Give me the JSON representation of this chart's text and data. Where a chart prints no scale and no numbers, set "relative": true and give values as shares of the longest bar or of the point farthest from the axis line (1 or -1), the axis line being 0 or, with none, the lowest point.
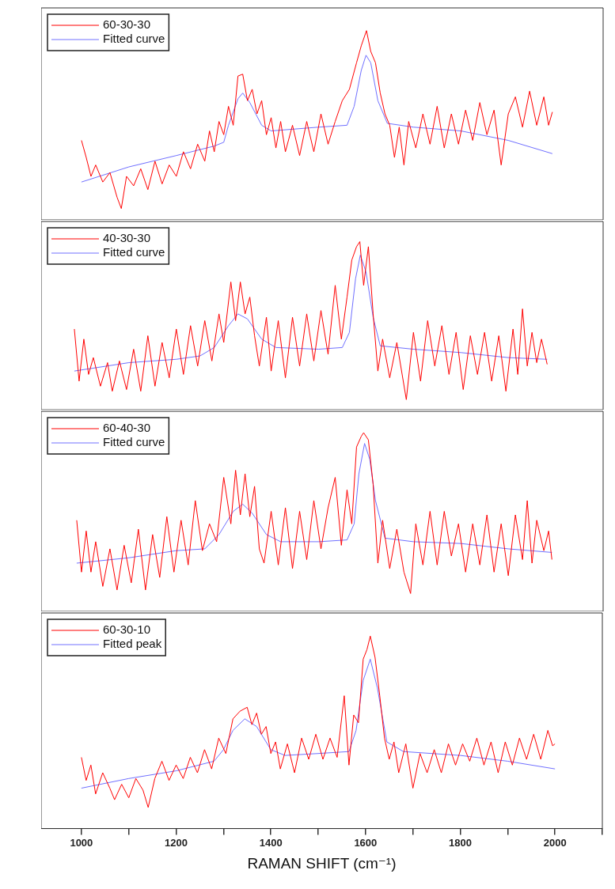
{
  "chart_data": [
    {
      "type": "line",
      "relative": true,
      "xlim": [
        915,
        2100
      ],
      "tick_labels": false,
      "grid": false,
      "legend": "top left",
      "series": [
        {
          "name": "60-30-30",
          "color": "#ff0000",
          "x": [
            1000,
            1010,
            1020,
            1030,
            1045,
            1060,
            1075,
            1084,
            1095,
            1110,
            1125,
            1140,
            1155,
            1170,
            1185,
            1200,
            1215,
            1230,
            1245,
            1260,
            1270,
            1280,
            1290,
            1300,
            1310,
            1320,
            1330,
            1340,
            1350,
            1360,
            1370,
            1380,
            1390,
            1400,
            1410,
            1420,
            1430,
            1445,
            1460,
            1475,
            1490,
            1505,
            1520,
            1535,
            1550,
            1565,
            1580,
            1590,
            1601,
            1610,
            1620,
            1630,
            1640,
            1650,
            1660,
            1670,
            1680,
            1690,
            1705,
            1720,
            1735,
            1750,
            1765,
            1780,
            1795,
            1810,
            1825,
            1840,
            1855,
            1870,
            1885,
            1900,
            1915,
            1930,
            1945,
            1960,
            1975,
            1985,
            1993
          ],
          "values": [
            0.42,
            0.33,
            0.23,
            0.29,
            0.2,
            0.25,
            0.12,
            0.06,
            0.23,
            0.18,
            0.27,
            0.16,
            0.31,
            0.19,
            0.29,
            0.23,
            0.36,
            0.27,
            0.4,
            0.31,
            0.47,
            0.36,
            0.52,
            0.45,
            0.6,
            0.5,
            0.76,
            0.77,
            0.63,
            0.69,
            0.56,
            0.63,
            0.45,
            0.54,
            0.38,
            0.52,
            0.36,
            0.5,
            0.34,
            0.52,
            0.36,
            0.56,
            0.4,
            0.52,
            0.63,
            0.69,
            0.83,
            0.92,
            1,
            0.89,
            0.83,
            0.67,
            0.56,
            0.5,
            0.33,
            0.49,
            0.29,
            0.52,
            0.38,
            0.56,
            0.4,
            0.6,
            0.38,
            0.56,
            0.4,
            0.58,
            0.42,
            0.62,
            0.45,
            0.58,
            0.29,
            0.56,
            0.65,
            0.49,
            0.68,
            0.5,
            0.65,
            0.5,
            0.57
          ]
        },
        {
          "name": "Fitted curve",
          "color": "#7070ff",
          "x": [
            1000,
            1100,
            1200,
            1280,
            1300,
            1310,
            1330,
            1340,
            1355,
            1380,
            1400,
            1500,
            1560,
            1575,
            1590,
            1600,
            1610,
            1625,
            1645,
            1700,
            1800,
            1900,
            1993
          ],
          "values": [
            0.2,
            0.28,
            0.34,
            0.39,
            0.41,
            0.5,
            0.64,
            0.67,
            0.62,
            0.5,
            0.47,
            0.49,
            0.5,
            0.6,
            0.79,
            0.87,
            0.83,
            0.63,
            0.51,
            0.49,
            0.47,
            0.42,
            0.35
          ]
        }
      ]
    },
    {
      "type": "line",
      "relative": true,
      "xlim": [
        915,
        2100
      ],
      "tick_labels": false,
      "grid": false,
      "legend": "top left",
      "series": [
        {
          "name": "40-30-30",
          "color": "#ff0000",
          "x": [
            985,
            995,
            1005,
            1015,
            1025,
            1040,
            1055,
            1065,
            1080,
            1095,
            1110,
            1125,
            1140,
            1155,
            1170,
            1185,
            1200,
            1215,
            1230,
            1245,
            1260,
            1275,
            1290,
            1300,
            1315,
            1325,
            1335,
            1345,
            1355,
            1365,
            1375,
            1390,
            1400,
            1415,
            1430,
            1445,
            1460,
            1475,
            1490,
            1505,
            1520,
            1535,
            1548,
            1560,
            1570,
            1580,
            1587,
            1595,
            1605,
            1615,
            1625,
            1635,
            1650,
            1665,
            1685,
            1700,
            1715,
            1730,
            1745,
            1760,
            1775,
            1790,
            1805,
            1820,
            1835,
            1850,
            1865,
            1880,
            1895,
            1910,
            1920,
            1930,
            1940,
            1950,
            1960,
            1970,
            1982
          ],
          "values": [
            0.48,
            0.17,
            0.42,
            0.21,
            0.31,
            0.14,
            0.28,
            0.11,
            0.29,
            0.12,
            0.36,
            0.11,
            0.44,
            0.14,
            0.4,
            0.19,
            0.48,
            0.21,
            0.5,
            0.26,
            0.53,
            0.29,
            0.57,
            0.4,
            0.76,
            0.53,
            0.76,
            0.57,
            0.67,
            0.44,
            0.26,
            0.55,
            0.23,
            0.53,
            0.19,
            0.55,
            0.26,
            0.57,
            0.29,
            0.59,
            0.33,
            0.74,
            0.42,
            0.67,
            0.89,
            0.97,
            1,
            0.74,
            0.97,
            0.57,
            0.23,
            0.42,
            0.19,
            0.4,
            0.06,
            0.46,
            0.17,
            0.53,
            0.26,
            0.5,
            0.21,
            0.46,
            0.12,
            0.44,
            0.21,
            0.46,
            0.17,
            0.44,
            0.11,
            0.48,
            0.21,
            0.6,
            0.26,
            0.46,
            0.28,
            0.42,
            0.27
          ]
        },
        {
          "name": "Fitted curve",
          "color": "#7070ff",
          "x": [
            985,
            1100,
            1200,
            1250,
            1280,
            1310,
            1330,
            1350,
            1380,
            1410,
            1500,
            1550,
            1565,
            1578,
            1588,
            1600,
            1615,
            1630,
            1700,
            1800,
            1900,
            1982
          ],
          "values": [
            0.23,
            0.28,
            0.3,
            0.32,
            0.37,
            0.5,
            0.57,
            0.54,
            0.42,
            0.37,
            0.36,
            0.37,
            0.46,
            0.78,
            0.92,
            0.82,
            0.55,
            0.38,
            0.36,
            0.34,
            0.31,
            0.3
          ]
        }
      ]
    },
    {
      "type": "line",
      "relative": true,
      "xlim": [
        915,
        2100
      ],
      "tick_labels": false,
      "grid": false,
      "legend": "top left",
      "series": [
        {
          "name": "60-40-30",
          "color": "#ff0000",
          "x": [
            990,
            1000,
            1010,
            1020,
            1030,
            1045,
            1060,
            1075,
            1090,
            1105,
            1120,
            1135,
            1150,
            1165,
            1180,
            1195,
            1210,
            1225,
            1240,
            1255,
            1270,
            1285,
            1300,
            1315,
            1325,
            1335,
            1345,
            1355,
            1365,
            1375,
            1385,
            1400,
            1415,
            1430,
            1445,
            1460,
            1475,
            1490,
            1505,
            1520,
            1535,
            1548,
            1560,
            1570,
            1580,
            1590,
            1595,
            1605,
            1615,
            1625,
            1635,
            1650,
            1665,
            1680,
            1694,
            1705,
            1720,
            1735,
            1750,
            1765,
            1780,
            1795,
            1810,
            1825,
            1840,
            1855,
            1870,
            1885,
            1900,
            1915,
            1930,
            1940,
            1950,
            1960,
            1975,
            1985,
            1992
          ],
          "values": [
            0.51,
            0.22,
            0.45,
            0.22,
            0.39,
            0.14,
            0.35,
            0.12,
            0.37,
            0.16,
            0.46,
            0.12,
            0.43,
            0.19,
            0.53,
            0.22,
            0.51,
            0.26,
            0.62,
            0.34,
            0.49,
            0.39,
            0.75,
            0.49,
            0.79,
            0.54,
            0.77,
            0.53,
            0.7,
            0.35,
            0.27,
            0.56,
            0.26,
            0.58,
            0.24,
            0.56,
            0.29,
            0.62,
            0.35,
            0.58,
            0.75,
            0.37,
            0.68,
            0.49,
            0.92,
            0.98,
            1,
            0.96,
            0.71,
            0.27,
            0.51,
            0.24,
            0.46,
            0.22,
            0.1,
            0.49,
            0.26,
            0.56,
            0.26,
            0.56,
            0.31,
            0.49,
            0.22,
            0.49,
            0.26,
            0.54,
            0.22,
            0.49,
            0.2,
            0.54,
            0.29,
            0.62,
            0.27,
            0.51,
            0.34,
            0.45,
            0.29
          ]
        },
        {
          "name": "Fitted curve",
          "color": "#7070ff",
          "x": [
            990,
            1100,
            1200,
            1260,
            1290,
            1320,
            1340,
            1360,
            1390,
            1420,
            1500,
            1560,
            1575,
            1585,
            1597,
            1608,
            1620,
            1640,
            1700,
            1800,
            1900,
            1992
          ],
          "values": [
            0.27,
            0.3,
            0.34,
            0.35,
            0.43,
            0.56,
            0.6,
            0.55,
            0.43,
            0.39,
            0.39,
            0.4,
            0.49,
            0.77,
            0.94,
            0.85,
            0.62,
            0.41,
            0.39,
            0.38,
            0.35,
            0.33
          ]
        }
      ]
    },
    {
      "type": "line",
      "relative": true,
      "xlim": [
        915,
        2100
      ],
      "xticks": [
        1000,
        {
          "value": 1100,
          "label": null
        },
        1200,
        {
          "value": 1300,
          "label": null
        },
        1400,
        {
          "value": 1500,
          "label": null
        },
        1600,
        {
          "value": 1700,
          "label": null
        },
        1800,
        {
          "value": 1900,
          "label": null
        },
        2000,
        {
          "value": 2100,
          "label": null
        }
      ],
      "tick_labels": "x",
      "grid": false,
      "legend": "top left",
      "xlabel": "RAMAN SHIFT (cm⁻¹)",
      "series": [
        {
          "name": "60-30-10",
          "color": "#ff0000",
          "x": [
            1000,
            1010,
            1020,
            1030,
            1045,
            1060,
            1070,
            1085,
            1100,
            1115,
            1130,
            1141,
            1155,
            1170,
            1185,
            1200,
            1215,
            1230,
            1245,
            1260,
            1275,
            1290,
            1305,
            1320,
            1335,
            1350,
            1360,
            1370,
            1380,
            1390,
            1400,
            1410,
            1420,
            1435,
            1450,
            1465,
            1480,
            1495,
            1510,
            1525,
            1540,
            1555,
            1565,
            1575,
            1585,
            1595,
            1603,
            1610,
            1620,
            1630,
            1640,
            1650,
            1660,
            1670,
            1685,
            1700,
            1715,
            1730,
            1745,
            1760,
            1775,
            1790,
            1805,
            1820,
            1835,
            1850,
            1865,
            1880,
            1895,
            1910,
            1925,
            1940,
            1955,
            1970,
            1985,
            1995,
            2000
          ],
          "values": [
            0.37,
            0.25,
            0.33,
            0.18,
            0.29,
            0.21,
            0.15,
            0.23,
            0.16,
            0.26,
            0.2,
            0.11,
            0.26,
            0.35,
            0.25,
            0.33,
            0.26,
            0.37,
            0.29,
            0.41,
            0.31,
            0.47,
            0.39,
            0.57,
            0.61,
            0.63,
            0.54,
            0.6,
            0.49,
            0.53,
            0.39,
            0.45,
            0.31,
            0.44,
            0.29,
            0.47,
            0.36,
            0.49,
            0.36,
            0.47,
            0.37,
            0.69,
            0.33,
            0.59,
            0.55,
            0.88,
            0.93,
            1,
            0.89,
            0.69,
            0.47,
            0.36,
            0.45,
            0.29,
            0.44,
            0.21,
            0.39,
            0.29,
            0.41,
            0.29,
            0.44,
            0.33,
            0.44,
            0.35,
            0.47,
            0.33,
            0.45,
            0.29,
            0.45,
            0.33,
            0.47,
            0.36,
            0.49,
            0.36,
            0.51,
            0.43,
            0.44
          ]
        },
        {
          "name": "Fitted peak",
          "color": "#7070ff",
          "x": [
            1000,
            1100,
            1200,
            1280,
            1300,
            1320,
            1345,
            1370,
            1400,
            1430,
            1500,
            1565,
            1580,
            1595,
            1610,
            1625,
            1645,
            1680,
            1800,
            1900,
            2000
          ],
          "values": [
            0.21,
            0.26,
            0.3,
            0.35,
            0.41,
            0.51,
            0.57,
            0.53,
            0.41,
            0.38,
            0.39,
            0.4,
            0.51,
            0.77,
            0.88,
            0.73,
            0.45,
            0.4,
            0.38,
            0.35,
            0.31
          ]
        }
      ]
    }
  ]
}
